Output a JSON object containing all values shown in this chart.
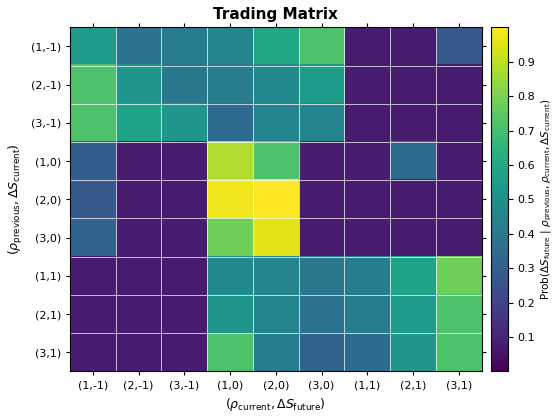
{
  "title": "Trading Matrix",
  "xlabel": "($\\rho_{\\mathrm{current}},\\Delta S_{\\mathrm{future}}$)",
  "ylabel": "($\\rho_{\\mathrm{previous}},\\Delta S_{\\mathrm{current}}$)",
  "colorbar_label": "Prob($\\Delta S_{\\mathrm{future}}$ | $\\rho_{\\mathrm{previous}},\\rho_{\\mathrm{current}},\\Delta S_{\\mathrm{current}}$)",
  "xticklabels": [
    "(1,-1)",
    "(2,-1)",
    "(3,-1)",
    "(1,0)",
    "(2,0)",
    "(3,0)",
    "(1,1)",
    "(2,1)",
    "(3,1)"
  ],
  "yticklabels": [
    "(1,-1)",
    "(2,-1)",
    "(3,-1)",
    "(1,0)",
    "(2,0)",
    "(3,0)",
    "(1,1)",
    "(2,1)",
    "(3,1)"
  ],
  "vmin": 0.0,
  "vmax": 1.0,
  "matrix": [
    [
      0.55,
      0.38,
      0.42,
      0.45,
      0.6,
      0.72,
      0.08,
      0.08,
      0.28
    ],
    [
      0.72,
      0.52,
      0.4,
      0.42,
      0.48,
      0.55,
      0.08,
      0.08,
      0.08
    ],
    [
      0.72,
      0.58,
      0.52,
      0.35,
      0.45,
      0.45,
      0.08,
      0.08,
      0.08
    ],
    [
      0.3,
      0.08,
      0.08,
      0.88,
      0.72,
      0.08,
      0.08,
      0.35,
      0.08
    ],
    [
      0.28,
      0.08,
      0.08,
      0.98,
      1.0,
      0.08,
      0.08,
      0.08,
      0.08
    ],
    [
      0.32,
      0.08,
      0.08,
      0.78,
      0.96,
      0.08,
      0.08,
      0.08,
      0.08
    ],
    [
      0.08,
      0.08,
      0.08,
      0.48,
      0.45,
      0.4,
      0.42,
      0.58,
      0.78
    ],
    [
      0.08,
      0.08,
      0.08,
      0.52,
      0.45,
      0.38,
      0.42,
      0.55,
      0.72
    ],
    [
      0.08,
      0.08,
      0.08,
      0.72,
      0.42,
      0.32,
      0.35,
      0.52,
      0.72
    ]
  ],
  "colormap": "viridis",
  "cbar_ticks": [
    0.1,
    0.2,
    0.3,
    0.4,
    0.5,
    0.6,
    0.7,
    0.8,
    0.9
  ],
  "figwidth": 5.6,
  "figheight": 4.2,
  "dpi": 100
}
